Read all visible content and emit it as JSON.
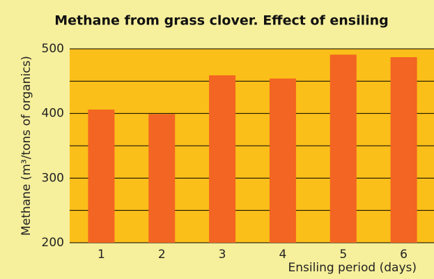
{
  "chart_data": {
    "type": "bar",
    "title": "Methane from grass clover. Effect of ensiling",
    "x_label": "Ensiling period (days)",
    "y_label": "Methane (m³/tons of organics)",
    "categories": [
      "1",
      "2",
      "3",
      "4",
      "5",
      "6"
    ],
    "values": [
      406,
      399,
      459,
      454,
      491,
      487
    ],
    "color": "#f26522",
    "ylim": [
      200,
      500
    ],
    "yticks": [
      200,
      300,
      400,
      500
    ],
    "minor_yticks": [
      250,
      350,
      450
    ],
    "grid": true
  }
}
